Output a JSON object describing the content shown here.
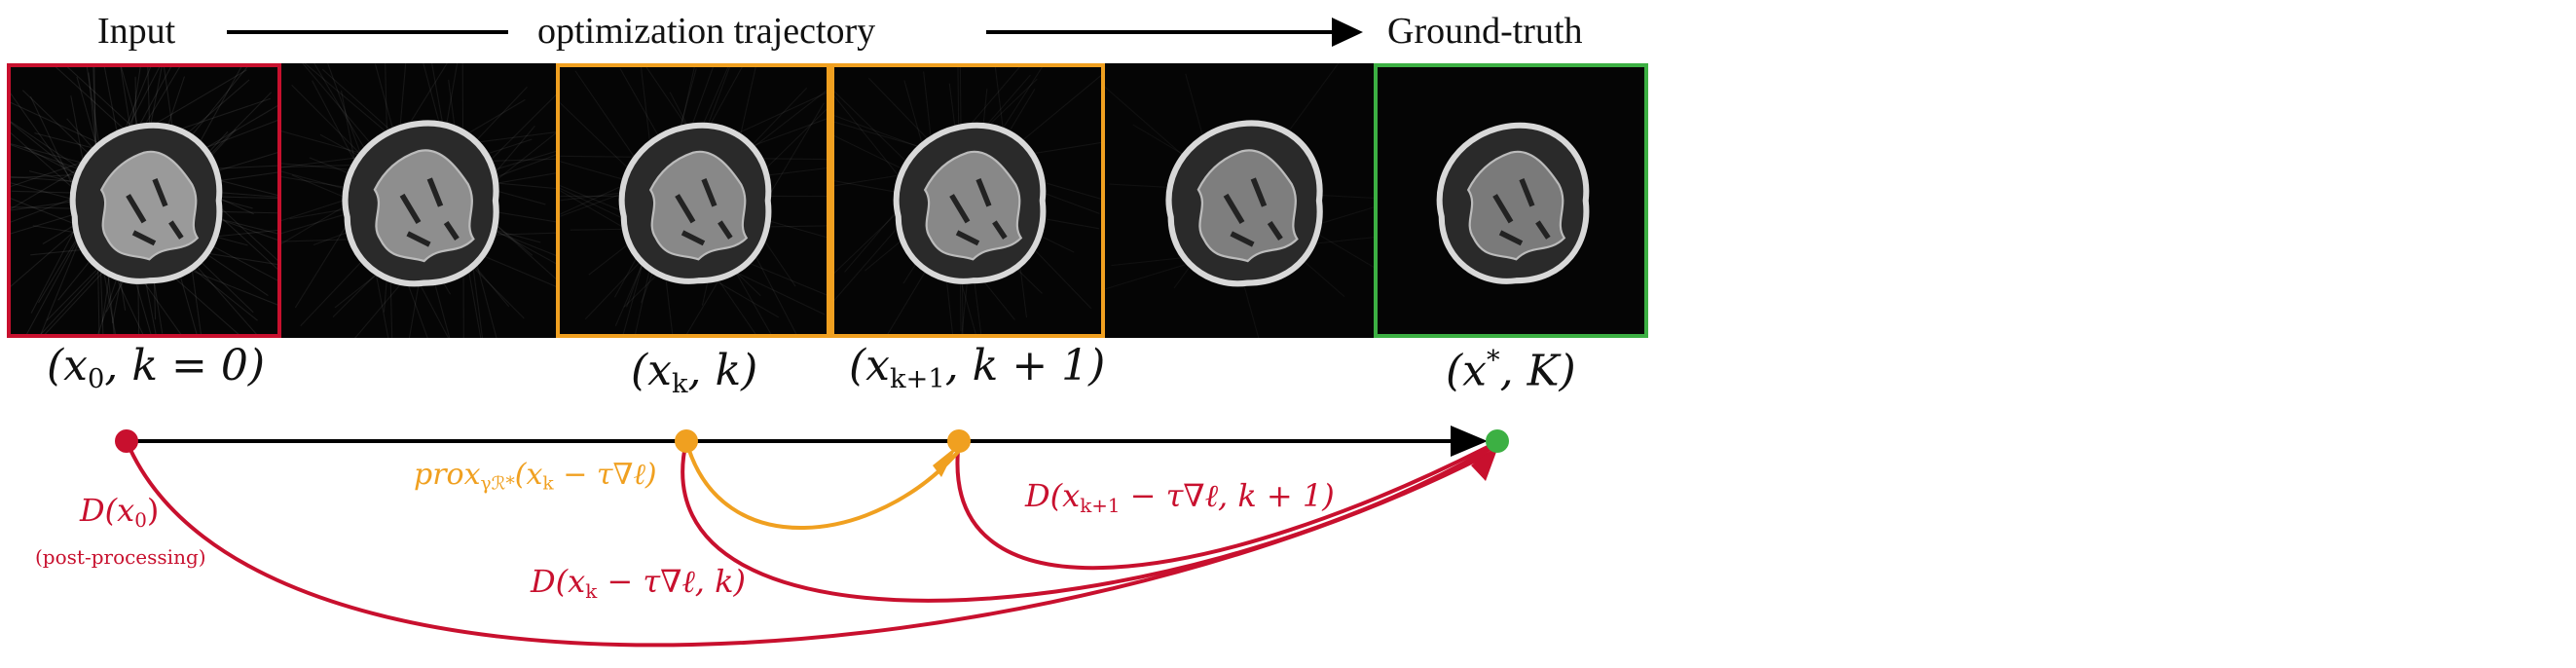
{
  "header": {
    "input": "Input",
    "trajectory": "optimization trajectory",
    "ground_truth": "Ground-truth"
  },
  "colors": {
    "input_border": "#c8102e",
    "step_border": "#f0a020",
    "gt_border": "#3cb043",
    "red": "#c8102e",
    "orange": "#f0a020",
    "green": "#3cb043"
  },
  "labels": {
    "x0": {
      "a": "(x",
      "sub": "0",
      "b": ", k = 0)"
    },
    "xk": {
      "a": "(x",
      "sub": "k",
      "b": ", k)"
    },
    "xk1": {
      "a": "(x",
      "sub": "k+1",
      "b": ", k + 1)"
    },
    "xstar": {
      "a": "(x",
      "sup": "*",
      "b": ", K)"
    }
  },
  "annotations": {
    "d_x0": {
      "a": "D(x",
      "sub": "0",
      "b": ")"
    },
    "post_processing": "(post-processing)",
    "prox": {
      "a": "prox",
      "sub": "γℛ*",
      "b": "(x",
      "sub2": "k",
      "c": " − τ∇ℓ)"
    },
    "d_xk": {
      "a": "D(x",
      "sub": "k",
      "b": "  −  τ∇ℓ, k)"
    },
    "d_xk1": {
      "a": "D(x",
      "sub": "k+1",
      "b": "  −  τ∇ℓ, k + 1)"
    }
  }
}
